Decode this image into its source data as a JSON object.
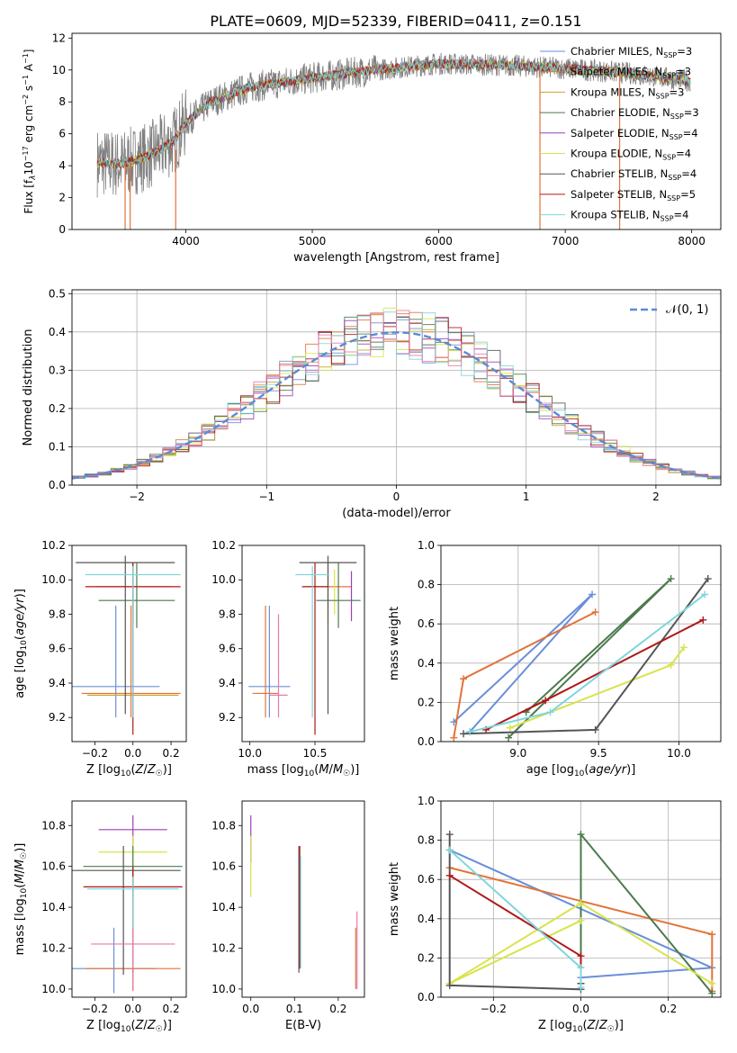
{
  "title": "PLATE=0609, MJD=52339, FIBERID=0411, z=0.151",
  "models": [
    {
      "name": "Chabrier MILES",
      "nssp": "3",
      "color": "#6a8fd8"
    },
    {
      "name": "Salpeter MILES",
      "nssp": "3",
      "color": "#e2733a"
    },
    {
      "name": "Kroupa MILES",
      "nssp": "3",
      "color": "#c9a227"
    },
    {
      "name": "Chabrier ELODIE",
      "nssp": "3",
      "color": "#4c7a4c"
    },
    {
      "name": "Salpeter ELODIE",
      "nssp": "4",
      "color": "#9b3fb5"
    },
    {
      "name": "Kroupa ELODIE",
      "nssp": "4",
      "color": "#d9e34a"
    },
    {
      "name": "Chabrier STELIB",
      "nssp": "4",
      "color": "#555555"
    },
    {
      "name": "Salpeter STELIB",
      "nssp": "5",
      "color": "#b01717"
    },
    {
      "name": "Kroupa STELIB",
      "nssp": "4",
      "color": "#7fd6dc"
    }
  ],
  "chart_data": [
    {
      "id": "spectrum",
      "type": "line",
      "xlabel": "wavelength [Angstrom, rest frame]",
      "ylabel": "Flux [f_λ10^-17 erg cm^-2 s^-1 A^-1]",
      "xlim": [
        3100,
        8230
      ],
      "ylim": [
        0,
        12.3
      ],
      "xticks": [
        4000,
        5000,
        6000,
        7000,
        8000
      ],
      "yticks": [
        0,
        2,
        4,
        6,
        8,
        10,
        12
      ],
      "continuum": {
        "x": [
          3300,
          3500,
          3700,
          3900,
          4000,
          4200,
          4500,
          5000,
          5500,
          6000,
          6500,
          7000,
          7500,
          8000
        ],
        "y": [
          4.2,
          4.1,
          4.6,
          5.5,
          6.7,
          8.0,
          8.9,
          9.5,
          10.0,
          10.4,
          10.3,
          10.1,
          9.8,
          9.3
        ]
      },
      "data_range": [
        3300,
        7990
      ],
      "legend_position": "upper right"
    },
    {
      "id": "residuals",
      "type": "histogram",
      "xlabel": "(data-model)/error",
      "ylabel": "Normed distribution",
      "xlim": [
        -2.5,
        2.5
      ],
      "ylim": [
        0,
        0.51
      ],
      "xticks": [
        -2,
        -1,
        0,
        1,
        2
      ],
      "yticks": [
        0,
        0.1,
        0.2,
        0.3,
        0.4,
        0.5
      ],
      "bin_width": 0.1,
      "reference_label": "𝒩(0, 1)",
      "reference_color": "#5b8bd6",
      "legend_position": "upper right",
      "grid": true
    },
    {
      "id": "age_vs_Z",
      "type": "errorbar",
      "xlabel": "Z [log10(Z/Z☉)]",
      "ylabel": "age [log10(age/yr)]",
      "xlim": [
        -0.32,
        0.28
      ],
      "ylim": [
        9.06,
        10.2
      ],
      "xticks": [
        -0.2,
        0.0,
        0.2
      ],
      "yticks": [
        9.2,
        9.4,
        9.6,
        9.8,
        10.0,
        10.2
      ],
      "bars": [
        {
          "model": 0,
          "x": -0.09,
          "y": 9.38,
          "xerr": 0.23,
          "yerr": [
            9.2,
            9.85
          ]
        },
        {
          "model": 1,
          "x": -0.01,
          "y": 9.34,
          "xerr": 0.26,
          "yerr": [
            9.2,
            9.85
          ]
        },
        {
          "model": 1,
          "x": 0.0,
          "y": 9.96,
          "xerr": 0.2,
          "yerr": [
            9.75,
            10.1
          ]
        },
        {
          "model": 2,
          "x": 0.0,
          "y": 9.33,
          "xerr": 0.24,
          "yerr": [
            9.8,
            9.95
          ]
        },
        {
          "model": 3,
          "x": 0.02,
          "y": 9.88,
          "xerr": 0.2,
          "yerr": [
            9.72,
            10.1
          ]
        },
        {
          "model": 6,
          "x": -0.04,
          "y": 10.1,
          "xerr": 0.26,
          "yerr": [
            9.22,
            10.14
          ]
        },
        {
          "model": 7,
          "x": 0.0,
          "y": 9.96,
          "xerr": 0.25,
          "yerr": [
            9.1,
            10.1
          ]
        },
        {
          "model": 8,
          "x": 0.0,
          "y": 10.03,
          "xerr": 0.25,
          "yerr": [
            9.2,
            10.08
          ]
        }
      ]
    },
    {
      "id": "age_vs_mass",
      "type": "errorbar",
      "xlabel": "mass [log10(M/M☉)]",
      "ylabel": "",
      "xlim": [
        9.94,
        10.88
      ],
      "ylim": [
        9.06,
        10.2
      ],
      "xticks": [
        10.0,
        10.5
      ],
      "yticks": [
        9.2,
        9.4,
        9.6,
        9.8,
        10.0,
        10.2
      ],
      "bars": [
        {
          "model": 0,
          "x": 10.15,
          "y": 9.38,
          "xerr": 0.16,
          "yerr": [
            9.2,
            9.85
          ]
        },
        {
          "model": 1,
          "x": 10.12,
          "y": 9.34,
          "xerr": 0.1,
          "yerr": [
            9.2,
            9.85
          ]
        },
        {
          "model": 1,
          "x": 10.6,
          "y": 9.96,
          "xerr": 0.18,
          "yerr": [
            9.75,
            10.1
          ]
        },
        {
          "model": 4,
          "x": 10.78,
          "y": 9.88,
          "xerr": 0.0,
          "yerr": [
            9.76,
            10.05
          ]
        },
        {
          "model": 5,
          "x": 10.65,
          "y": 9.94,
          "xerr": 0.0,
          "yerr": [
            9.8,
            10.06
          ]
        },
        {
          "model": 3,
          "x": 10.68,
          "y": 9.88,
          "xerr": 0.17,
          "yerr": [
            9.72,
            10.1
          ]
        },
        {
          "model": 6,
          "x": 10.6,
          "y": 10.1,
          "xerr": 0.22,
          "yerr": [
            9.22,
            10.14
          ]
        },
        {
          "model": 7,
          "x": 10.5,
          "y": 9.96,
          "xerr": 0.1,
          "yerr": [
            9.1,
            10.1
          ]
        },
        {
          "model": 8,
          "x": 10.48,
          "y": 10.03,
          "xerr": 0.13,
          "yerr": [
            9.2,
            10.08
          ]
        },
        {
          "model": 9,
          "x": 10.22,
          "y": 9.33,
          "xerr": 0.07,
          "yerr": [
            9.2,
            9.8
          ]
        }
      ]
    },
    {
      "id": "mass_weight_vs_age",
      "type": "line",
      "xlabel": "age [log10(age/yr)]",
      "ylabel": "mass weight",
      "xlim": [
        8.52,
        10.26
      ],
      "ylim": [
        0,
        1.0
      ],
      "xticks": [
        9.0,
        9.5,
        10.0
      ],
      "yticks": [
        0.0,
        0.2,
        0.4,
        0.6,
        0.8,
        1.0
      ],
      "series": [
        {
          "model": 0,
          "x": [
            8.6,
            9.46,
            8.7
          ],
          "y": [
            0.1,
            0.75,
            0.05
          ]
        },
        {
          "model": 1,
          "x": [
            8.6,
            8.66,
            9.48
          ],
          "y": [
            0.02,
            0.32,
            0.66
          ]
        },
        {
          "model": 3,
          "x": [
            8.94,
            9.95,
            9.05
          ],
          "y": [
            0.02,
            0.83,
            0.15
          ]
        },
        {
          "model": 5,
          "x": [
            8.95,
            9.95,
            10.03
          ],
          "y": [
            0.07,
            0.39,
            0.48
          ]
        },
        {
          "model": 6,
          "x": [
            8.66,
            9.48,
            10.18
          ],
          "y": [
            0.04,
            0.06,
            0.83
          ]
        },
        {
          "model": 7,
          "x": [
            8.8,
            9.17,
            10.15
          ],
          "y": [
            0.06,
            0.21,
            0.62
          ]
        },
        {
          "model": 8,
          "x": [
            8.7,
            9.2,
            10.16
          ],
          "y": [
            0.05,
            0.15,
            0.75
          ]
        }
      ],
      "grid": true
    },
    {
      "id": "mass_vs_Z",
      "type": "errorbar",
      "xlabel": "Z [log10(Z/Z☉)]",
      "ylabel": "mass [log10(M/M☉)]",
      "xlim": [
        -0.32,
        0.28
      ],
      "ylim": [
        9.96,
        10.92
      ],
      "xticks": [
        -0.2,
        0.0,
        0.2
      ],
      "yticks": [
        10.0,
        10.2,
        10.4,
        10.6,
        10.8
      ],
      "bars": [
        {
          "model": 0,
          "x": -0.1,
          "y": 10.1,
          "xerr": 0.22,
          "yerr": [
            9.98,
            10.3
          ]
        },
        {
          "model": 1,
          "x": 0.0,
          "y": 10.1,
          "xerr": 0.25,
          "yerr": [
            9.99,
            10.28
          ]
        },
        {
          "model": 4,
          "x": 0.0,
          "y": 10.78,
          "xerr": 0.18,
          "yerr": [
            10.7,
            10.85
          ]
        },
        {
          "model": 5,
          "x": 0.0,
          "y": 10.67,
          "xerr": 0.18,
          "yerr": [
            10.58,
            10.75
          ]
        },
        {
          "model": 3,
          "x": 0.0,
          "y": 10.6,
          "xerr": 0.26,
          "yerr": [
            10.45,
            10.7
          ]
        },
        {
          "model": 6,
          "x": -0.05,
          "y": 10.58,
          "xerr": 0.3,
          "yerr": [
            10.07,
            10.7
          ]
        },
        {
          "model": 7,
          "x": 0.0,
          "y": 10.5,
          "xerr": 0.26,
          "yerr": [
            10.08,
            10.6
          ]
        },
        {
          "model": 8,
          "x": 0.0,
          "y": 10.49,
          "xerr": 0.24,
          "yerr": [
            10.1,
            10.55
          ]
        },
        {
          "model": 9,
          "x": 0.0,
          "y": 10.22,
          "xerr": 0.22,
          "yerr": [
            10.0,
            10.3
          ]
        }
      ]
    },
    {
      "id": "mass_vs_ebv",
      "type": "errorbar",
      "xlabel": "E(B-V)",
      "ylabel": "",
      "xlim": [
        -0.02,
        0.26
      ],
      "ylim": [
        9.96,
        10.92
      ],
      "xticks": [
        0.0,
        0.1,
        0.2
      ],
      "yticks": [
        10.0,
        10.2,
        10.4,
        10.6,
        10.8
      ],
      "bars": [
        {
          "model": 4,
          "x": 0.0,
          "y": 10.7,
          "xerr": 0.0,
          "yerr": [
            10.62,
            10.85
          ]
        },
        {
          "model": 5,
          "x": 0.0,
          "y": 10.6,
          "xerr": 0.0,
          "yerr": [
            10.45,
            10.75
          ]
        },
        {
          "model": 6,
          "x": 0.11,
          "y": 10.5,
          "xerr": 0.0,
          "yerr": [
            10.08,
            10.7
          ]
        },
        {
          "model": 7,
          "x": 0.112,
          "y": 10.5,
          "xerr": 0.0,
          "yerr": [
            10.1,
            10.7
          ]
        },
        {
          "model": 8,
          "x": 0.114,
          "y": 10.4,
          "xerr": 0.0,
          "yerr": [
            10.1,
            10.65
          ]
        },
        {
          "model": 1,
          "x": 0.24,
          "y": 10.1,
          "xerr": 0.0,
          "yerr": [
            10.0,
            10.3
          ]
        },
        {
          "model": 9,
          "x": 0.243,
          "y": 10.2,
          "xerr": 0.0,
          "yerr": [
            10.0,
            10.38
          ]
        }
      ]
    },
    {
      "id": "mass_weight_vs_Z",
      "type": "line",
      "xlabel": "Z [log10(Z/Z☉)]",
      "ylabel": "mass weight",
      "xlim": [
        -0.32,
        0.32
      ],
      "ylim": [
        0,
        1.0
      ],
      "xticks": [
        -0.2,
        0.0,
        0.2
      ],
      "yticks": [
        0.0,
        0.2,
        0.4,
        0.6,
        0.8,
        1.0
      ],
      "series": [
        {
          "model": 0,
          "x": [
            -0.3,
            0.3,
            0.0
          ],
          "y": [
            0.75,
            0.15,
            0.1
          ]
        },
        {
          "model": 1,
          "x": [
            0.3,
            0.3,
            -0.3
          ],
          "y": [
            0.03,
            0.32,
            0.66
          ]
        },
        {
          "model": 3,
          "x": [
            0.3,
            0.0,
            0.0
          ],
          "y": [
            0.02,
            0.83,
            0.15
          ]
        },
        {
          "model": 5,
          "x": [
            -0.3,
            0.0,
            0.3
          ],
          "y": [
            0.07,
            0.48,
            0.07
          ]
        },
        {
          "model": 5,
          "x": [
            -0.3,
            0.0
          ],
          "y": [
            0.07,
            0.39
          ]
        },
        {
          "model": 6,
          "x": [
            -0.3,
            -0.3,
            0.0,
            0.0
          ],
          "y": [
            0.83,
            0.06,
            0.04,
            0.07
          ]
        },
        {
          "model": 7,
          "x": [
            -0.3,
            0.0,
            0.0
          ],
          "y": [
            0.62,
            0.21,
            0.15
          ]
        },
        {
          "model": 8,
          "x": [
            -0.3,
            0.0,
            0.0
          ],
          "y": [
            0.75,
            0.15,
            0.05
          ]
        }
      ],
      "grid": true
    }
  ]
}
